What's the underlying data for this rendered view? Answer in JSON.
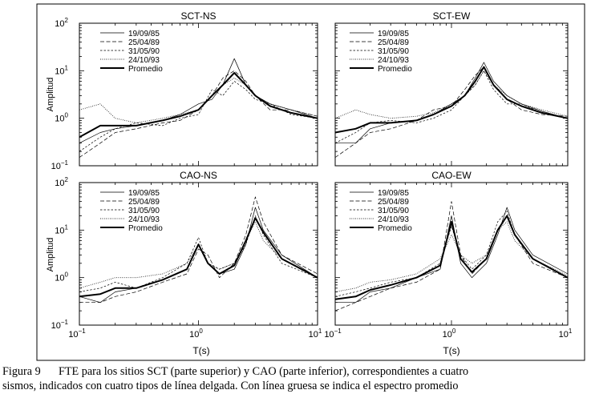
{
  "figure": {
    "shared_ylabel": "Amplitud",
    "shared_xlabel": "T(s)",
    "legend_entries": [
      "19/09/85",
      "25/04/89",
      "31/05/90",
      "24/10/93",
      "Promedio"
    ],
    "legend_styles": [
      "solid",
      "longdash",
      "shortdash",
      "dotted",
      "thick"
    ],
    "x_ticks": [
      "10",
      "10",
      "10"
    ],
    "x_tick_exponents": [
      "−1",
      "0",
      "1"
    ],
    "y_ticks": [
      "10",
      "10",
      "10",
      "10"
    ],
    "y_tick_exponents": [
      "−1",
      "0",
      "1",
      "2"
    ]
  },
  "caption": {
    "label": "Figura 9",
    "text_line1": "FTE para los sitios SCT (parte superior) y CAO (parte inferior), correspondientes a cuatro",
    "text_rest": "sismos, indicados con cuatro tipos de línea delgada. Con línea gruesa se indica el espectro promedio"
  },
  "chart_data": [
    {
      "type": "line",
      "title": "SCT-NS",
      "xlabel": "",
      "ylabel": "Amplitud",
      "xscale": "log",
      "yscale": "log",
      "xlim": [
        0.1,
        10
      ],
      "ylim": [
        0.1,
        100
      ],
      "legend": "top-left",
      "x": [
        0.1,
        0.15,
        0.2,
        0.3,
        0.5,
        0.7,
        1.0,
        1.3,
        1.6,
        2.0,
        2.5,
        3.0,
        4.0,
        6.0,
        10.0
      ],
      "series": [
        {
          "name": "19/09/85",
          "values": [
            0.3,
            0.5,
            0.6,
            0.7,
            0.9,
            1.2,
            2.0,
            2.5,
            5.0,
            18.0,
            5.0,
            3.0,
            2.0,
            1.5,
            1.0
          ]
        },
        {
          "name": "25/04/89",
          "values": [
            0.15,
            0.3,
            0.5,
            0.6,
            0.8,
            0.9,
            1.5,
            3.0,
            7.0,
            10.0,
            6.0,
            3.0,
            1.5,
            1.5,
            1.1
          ]
        },
        {
          "name": "31/05/90",
          "values": [
            0.2,
            0.4,
            0.6,
            0.8,
            0.7,
            1.0,
            1.2,
            4.0,
            3.0,
            6.0,
            4.0,
            2.5,
            2.0,
            1.2,
            1.0
          ]
        },
        {
          "name": "24/10/93",
          "values": [
            1.5,
            2.0,
            1.0,
            0.8,
            1.0,
            1.2,
            1.5,
            3.0,
            5.0,
            7.0,
            5.0,
            3.0,
            2.0,
            1.5,
            1.1
          ]
        },
        {
          "name": "Promedio",
          "values": [
            0.4,
            0.7,
            0.7,
            0.7,
            0.9,
            1.1,
            1.5,
            3.0,
            5.0,
            9.0,
            5.0,
            3.0,
            1.8,
            1.3,
            1.0
          ]
        }
      ]
    },
    {
      "type": "line",
      "title": "SCT-EW",
      "xlabel": "",
      "ylabel": "",
      "xscale": "log",
      "yscale": "log",
      "xlim": [
        0.1,
        10
      ],
      "ylim": [
        0.1,
        100
      ],
      "legend": "top-right",
      "x": [
        0.1,
        0.15,
        0.2,
        0.3,
        0.5,
        0.7,
        1.0,
        1.3,
        1.6,
        1.9,
        2.3,
        3.0,
        4.0,
        6.0,
        10.0
      ],
      "series": [
        {
          "name": "19/09/85",
          "values": [
            0.3,
            0.3,
            0.6,
            0.8,
            0.9,
            1.2,
            2.0,
            3.0,
            7.0,
            15.0,
            6.0,
            3.0,
            2.0,
            1.4,
            1.0
          ]
        },
        {
          "name": "25/04/89",
          "values": [
            0.15,
            0.3,
            0.5,
            0.6,
            0.9,
            1.5,
            1.8,
            4.0,
            8.0,
            12.0,
            5.0,
            2.5,
            1.5,
            1.2,
            1.1
          ]
        },
        {
          "name": "31/05/90",
          "values": [
            0.3,
            0.5,
            0.8,
            0.9,
            0.8,
            1.0,
            1.5,
            3.0,
            5.0,
            10.0,
            4.0,
            2.0,
            2.0,
            1.3,
            1.0
          ]
        },
        {
          "name": "24/10/93",
          "values": [
            1.0,
            1.5,
            1.2,
            1.0,
            1.1,
            1.3,
            2.0,
            3.0,
            5.0,
            10.0,
            5.0,
            3.0,
            2.0,
            1.5,
            1.1
          ]
        },
        {
          "name": "Promedio",
          "values": [
            0.5,
            0.6,
            0.8,
            0.8,
            0.9,
            1.2,
            1.8,
            3.0,
            6.0,
            12.0,
            5.0,
            2.5,
            1.8,
            1.3,
            1.0
          ]
        }
      ]
    },
    {
      "type": "line",
      "title": "CAO-NS",
      "xlabel": "T(s)",
      "ylabel": "Amplitud",
      "xscale": "log",
      "yscale": "log",
      "xlim": [
        0.1,
        10
      ],
      "ylim": [
        0.1,
        100
      ],
      "legend": "top-left",
      "x": [
        0.1,
        0.15,
        0.2,
        0.3,
        0.5,
        0.8,
        1.0,
        1.2,
        1.5,
        2.0,
        2.5,
        3.0,
        3.5,
        5.0,
        10.0
      ],
      "series": [
        {
          "name": "19/09/85",
          "values": [
            0.4,
            0.3,
            0.5,
            0.6,
            0.9,
            1.5,
            5.0,
            2.0,
            1.2,
            1.5,
            5.0,
            30.0,
            10.0,
            3.0,
            1.0
          ]
        },
        {
          "name": "25/04/89",
          "values": [
            0.3,
            0.3,
            0.4,
            0.5,
            0.8,
            1.2,
            4.0,
            3.0,
            1.0,
            2.0,
            8.0,
            50.0,
            15.0,
            3.0,
            1.2
          ]
        },
        {
          "name": "31/05/90",
          "values": [
            0.5,
            0.6,
            0.8,
            0.6,
            1.0,
            2.0,
            7.0,
            2.0,
            1.5,
            2.0,
            5.0,
            20.0,
            8.0,
            2.0,
            1.0
          ]
        },
        {
          "name": "24/10/93",
          "values": [
            0.6,
            0.8,
            1.0,
            1.0,
            1.2,
            2.0,
            5.0,
            2.0,
            1.5,
            2.0,
            6.0,
            15.0,
            6.0,
            2.5,
            1.0
          ]
        },
        {
          "name": "Promedio",
          "values": [
            0.4,
            0.45,
            0.6,
            0.6,
            0.9,
            1.5,
            5.0,
            2.0,
            1.2,
            1.8,
            6.0,
            18.0,
            9.0,
            2.5,
            1.0
          ]
        }
      ]
    },
    {
      "type": "line",
      "title": "CAO-EW",
      "xlabel": "T(s)",
      "ylabel": "",
      "xscale": "log",
      "yscale": "log",
      "xlim": [
        0.1,
        10
      ],
      "ylim": [
        0.1,
        100
      ],
      "legend": "top-right",
      "x": [
        0.1,
        0.15,
        0.2,
        0.3,
        0.5,
        0.8,
        1.0,
        1.2,
        1.5,
        2.0,
        2.5,
        3.0,
        3.5,
        5.0,
        10.0
      ],
      "series": [
        {
          "name": "19/09/85",
          "values": [
            0.3,
            0.3,
            0.5,
            0.6,
            1.0,
            1.5,
            20.0,
            2.0,
            1.0,
            2.0,
            8.0,
            30.0,
            10.0,
            3.0,
            1.2
          ]
        },
        {
          "name": "25/04/89",
          "values": [
            0.2,
            0.3,
            0.4,
            0.6,
            0.8,
            1.5,
            40.0,
            3.0,
            1.2,
            2.5,
            10.0,
            20.0,
            8.0,
            2.0,
            1.0
          ]
        },
        {
          "name": "31/05/90",
          "values": [
            0.4,
            0.5,
            0.6,
            0.8,
            1.0,
            2.0,
            12.0,
            3.0,
            1.5,
            3.0,
            15.0,
            25.0,
            8.0,
            2.5,
            1.0
          ]
        },
        {
          "name": "24/10/93",
          "values": [
            0.5,
            0.6,
            0.8,
            0.9,
            1.2,
            2.5,
            8.0,
            3.0,
            2.0,
            3.0,
            10.0,
            15.0,
            6.0,
            2.5,
            1.1
          ]
        },
        {
          "name": "Promedio",
          "values": [
            0.35,
            0.4,
            0.55,
            0.7,
            1.0,
            1.8,
            15.0,
            2.5,
            1.3,
            2.5,
            10.0,
            20.0,
            8.0,
            2.5,
            1.0
          ]
        }
      ]
    }
  ]
}
